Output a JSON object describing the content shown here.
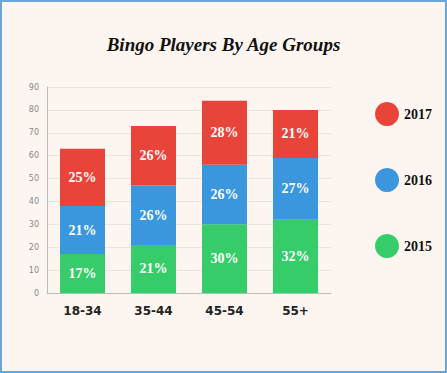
{
  "chart_data": {
    "type": "bar",
    "title": "Bingo Players By Age Groups",
    "categories": [
      "18-34",
      "35-44",
      "45-54",
      "55+"
    ],
    "series": [
      {
        "name": "2015",
        "color": "#36cc6a",
        "values": [
          17,
          21,
          30,
          32
        ],
        "value_labels": [
          "17%",
          "21%",
          "30%",
          "32%"
        ]
      },
      {
        "name": "2016",
        "color": "#3a96dd",
        "values": [
          21,
          26,
          26,
          27
        ],
        "value_labels": [
          "21%",
          "26%",
          "26%",
          "27%"
        ]
      },
      {
        "name": "2017",
        "color": "#e9443a",
        "values": [
          25,
          26,
          28,
          21
        ],
        "value_labels": [
          "25%",
          "26%",
          "28%",
          "21%"
        ]
      }
    ],
    "ylim": [
      0,
      90
    ],
    "yticks": [
      0,
      10,
      20,
      30,
      40,
      50,
      60,
      70,
      80,
      90
    ],
    "stacked": true,
    "data_labels": true,
    "grid": true,
    "legend": "right"
  }
}
